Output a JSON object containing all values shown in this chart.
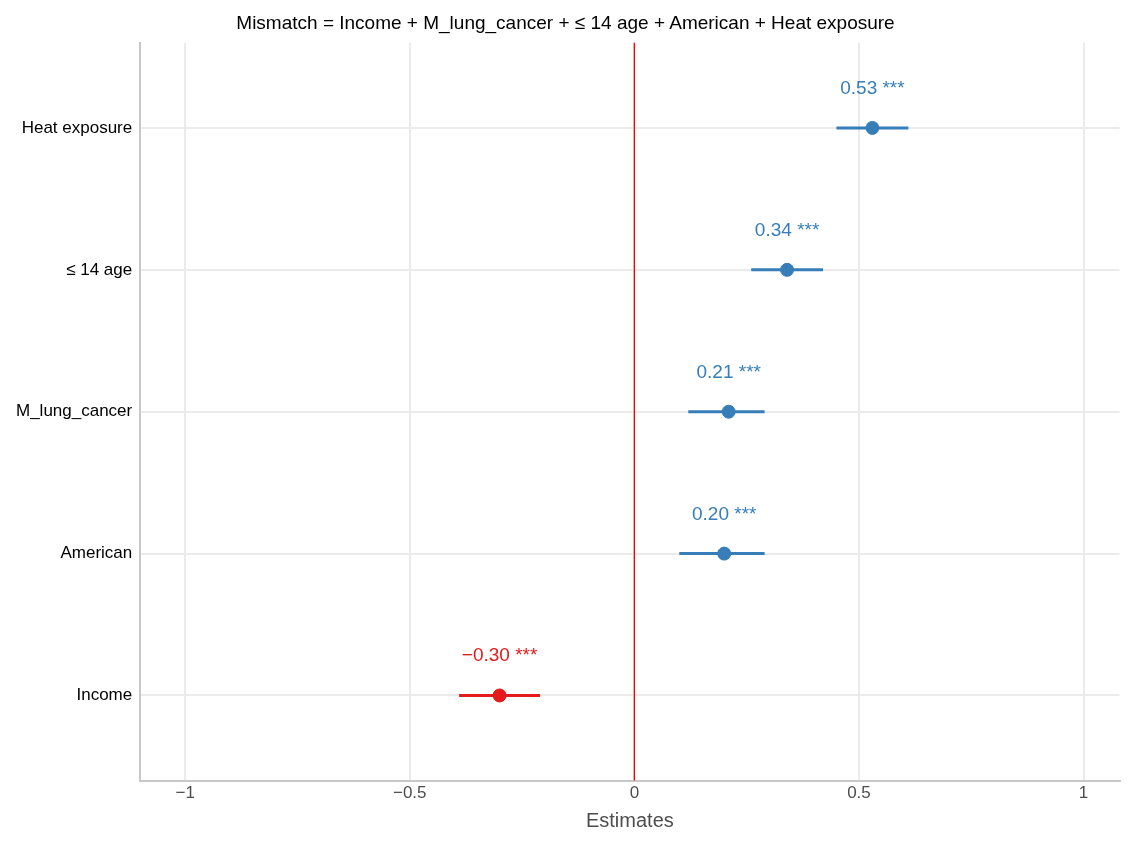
{
  "chart_data": {
    "type": "scatter",
    "orientation": "horizontal",
    "title": "Mismatch = Income + M_lung_cancer + ≤ 14 age + American + Heat exposure",
    "xlabel": "Estimates",
    "categories": [
      "Heat exposure",
      "≤ 14 age",
      "M_lung_cancer",
      "American",
      "Income"
    ],
    "values": [
      0.53,
      0.34,
      0.21,
      0.2,
      -0.3
    ],
    "errors": [
      [
        0.45,
        0.61
      ],
      [
        0.26,
        0.42
      ],
      [
        0.12,
        0.29
      ],
      [
        0.1,
        0.29
      ],
      [
        -0.39,
        -0.21
      ]
    ],
    "colors": [
      "#377eb8",
      "#377eb8",
      "#377eb8",
      "#377eb8",
      "#e41a1c"
    ],
    "value_labels": [
      "0.53 ***",
      "0.34 ***",
      "0.21 ***",
      "0.20 ***",
      "−0.30 ***"
    ],
    "xlim": [
      -1.1,
      1.08
    ],
    "xticks": [
      {
        "value": -1,
        "label": "−1"
      },
      {
        "value": -0.5,
        "label": "−0.5"
      },
      0,
      0.5,
      1
    ],
    "ref_lines": [
      {
        "axis": "x",
        "value": 0,
        "color": "#ff0000"
      }
    ],
    "grid": true,
    "marker": "circle",
    "legend": false
  }
}
